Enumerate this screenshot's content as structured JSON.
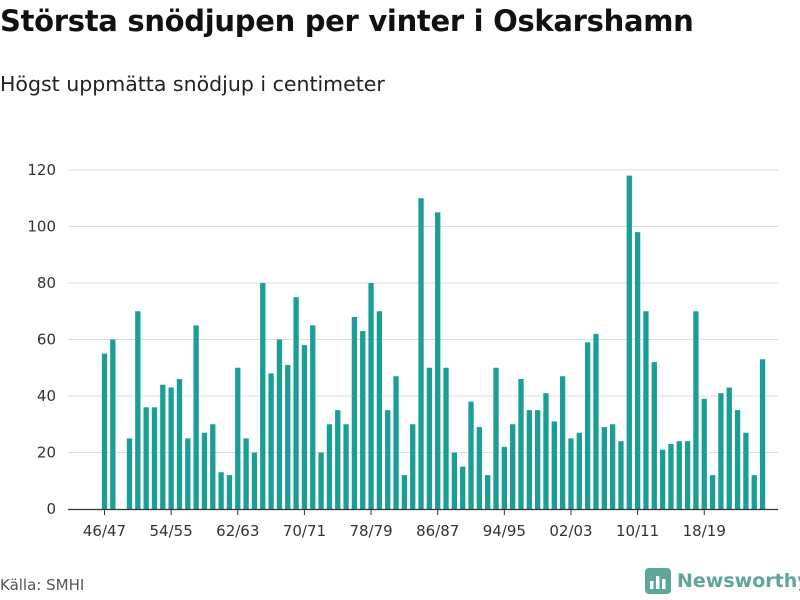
{
  "title": "Största snödjupen per vinter i Oskarshamn",
  "subtitle": "Högst uppmätta snödjup i centimeter",
  "source": "Källa: SMHI",
  "brand": {
    "name": "Newsworthy",
    "icon": "newsworthy-logo-icon",
    "color": "#5fa59a"
  },
  "colors": {
    "bar": "#1a9e96",
    "grid": "#dddddd",
    "axis": "#333333"
  },
  "chart_data": {
    "type": "bar",
    "title": "Största snödjupen per vinter i Oskarshamn",
    "subtitle": "Högst uppmätta snödjup i centimeter",
    "xlabel": "",
    "ylabel": "",
    "ylim": [
      0,
      120
    ],
    "yticks": [
      0,
      20,
      40,
      60,
      80,
      100,
      120
    ],
    "grid": true,
    "categories": [
      "46/47",
      "47/48",
      "48/49",
      "49/50",
      "50/51",
      "51/52",
      "52/53",
      "53/54",
      "54/55",
      "55/56",
      "56/57",
      "57/58",
      "58/59",
      "59/60",
      "60/61",
      "61/62",
      "62/63",
      "63/64",
      "64/65",
      "65/66",
      "66/67",
      "67/68",
      "68/69",
      "69/70",
      "70/71",
      "71/72",
      "72/73",
      "73/74",
      "74/75",
      "75/76",
      "76/77",
      "77/78",
      "78/79",
      "79/80",
      "80/81",
      "81/82",
      "82/83",
      "83/84",
      "84/85",
      "85/86",
      "86/87",
      "87/88",
      "88/89",
      "89/90",
      "90/91",
      "91/92",
      "92/93",
      "93/94",
      "94/95",
      "95/96",
      "96/97",
      "97/98",
      "98/99",
      "99/00",
      "00/01",
      "01/02",
      "02/03",
      "03/04",
      "04/05",
      "05/06",
      "06/07",
      "07/08",
      "08/09",
      "09/10",
      "10/11",
      "11/12",
      "12/13",
      "13/14",
      "14/15",
      "15/16",
      "16/17",
      "17/18",
      "18/19",
      "19/20",
      "20/21",
      "21/22",
      "22/23",
      "23/24",
      "24/25",
      "25/26"
    ],
    "values": [
      55,
      60,
      null,
      25,
      70,
      36,
      36,
      44,
      43,
      46,
      25,
      65,
      27,
      30,
      13,
      12,
      50,
      25,
      20,
      80,
      48,
      60,
      51,
      75,
      58,
      65,
      20,
      30,
      35,
      30,
      68,
      63,
      80,
      70,
      35,
      47,
      12,
      30,
      110,
      50,
      105,
      50,
      20,
      15,
      38,
      29,
      12,
      50,
      22,
      30,
      46,
      35,
      35,
      41,
      31,
      47,
      25,
      27,
      59,
      62,
      29,
      30,
      24,
      118,
      98,
      70,
      52,
      21,
      23,
      24,
      24,
      70,
      39,
      12,
      41,
      43,
      35,
      27,
      12,
      53
    ],
    "xtick_labels": [
      "46/47",
      "54/55",
      "62/63",
      "70/71",
      "78/79",
      "86/87",
      "94/95",
      "02/03",
      "10/11",
      "18/19"
    ]
  }
}
